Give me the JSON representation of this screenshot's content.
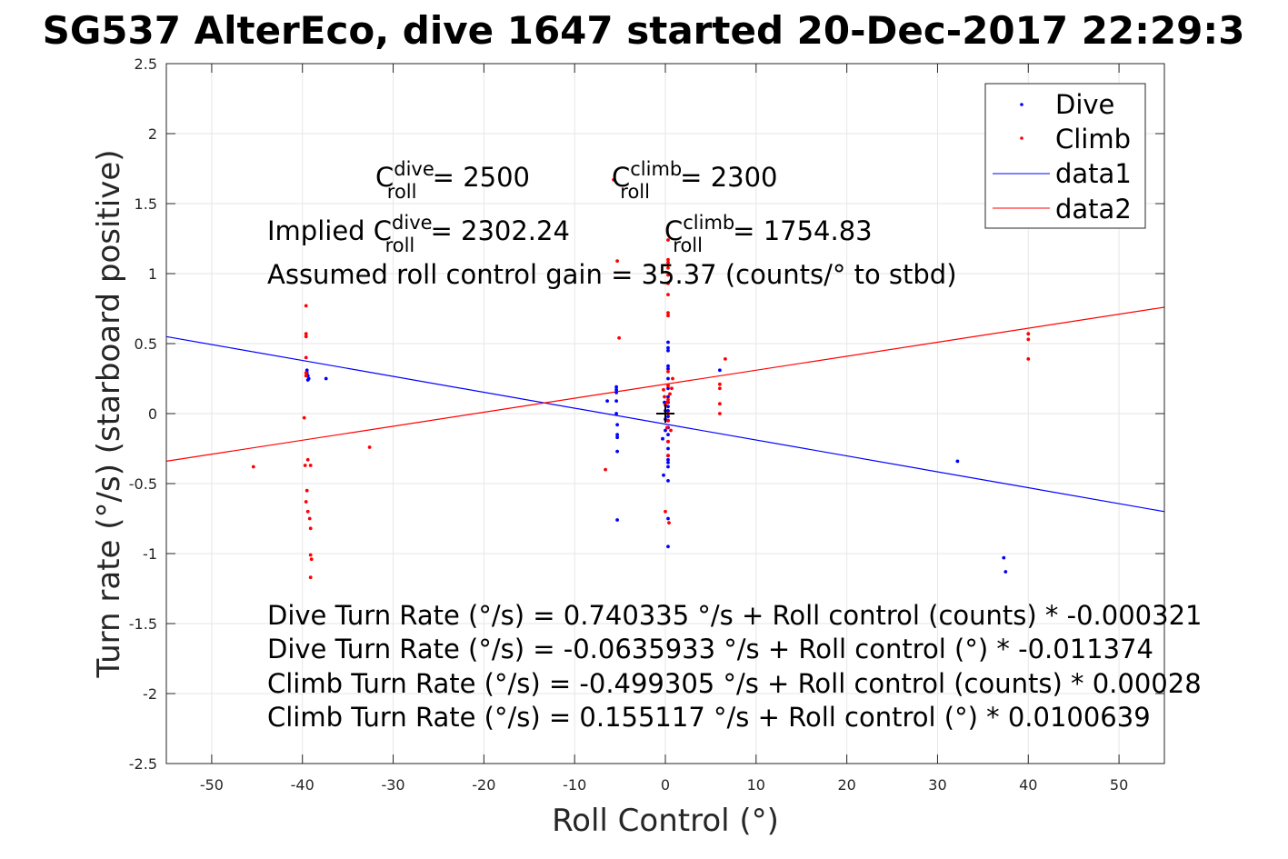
{
  "chart_data": {
    "type": "scatter",
    "title": "SG537 AlterEco, dive 1647 started 20-Dec-2017 22:29:3",
    "xlabel": "Roll Control (°)",
    "ylabel": "Turn rate (°/s) (starboard positive)",
    "xlim": [
      -55,
      55
    ],
    "ylim": [
      -2.5,
      2.5
    ],
    "x_ticks": [
      "-50",
      "-40",
      "-30",
      "-20",
      "-10",
      "0",
      "10",
      "20",
      "30",
      "40",
      "50"
    ],
    "y_ticks": [
      "-2.5",
      "-2",
      "-1.5",
      "-1",
      "-0.5",
      "0",
      "0.5",
      "1",
      "1.5",
      "2",
      "2.5"
    ],
    "grid": true,
    "legend_position": "top-right",
    "legend": [
      "Dive",
      "Climb",
      "data1",
      "data2"
    ],
    "colors": {
      "dive": "#0000ff",
      "climb": "#ff0000",
      "data1": "#0000ff",
      "data2": "#ff0000"
    },
    "series": [
      {
        "name": "Dive",
        "kind": "points",
        "color": "#0000ff",
        "points": [
          [
            -39.5,
            0.31
          ],
          [
            -39.5,
            0.29
          ],
          [
            -39.4,
            0.27
          ],
          [
            -39.4,
            0.24
          ],
          [
            -39.3,
            0.25
          ],
          [
            -37.4,
            0.25
          ],
          [
            -6.4,
            0.09
          ],
          [
            -5.4,
            0.19
          ],
          [
            -5.4,
            0.17
          ],
          [
            -5.4,
            0.15
          ],
          [
            -5.4,
            0.09
          ],
          [
            -5.4,
            0.0
          ],
          [
            -5.3,
            -0.08
          ],
          [
            -5.3,
            -0.15
          ],
          [
            -5.3,
            -0.17
          ],
          [
            -5.3,
            -0.27
          ],
          [
            -5.3,
            -0.76
          ],
          [
            0.3,
            0.51
          ],
          [
            0.3,
            0.47
          ],
          [
            0.3,
            0.45
          ],
          [
            0.3,
            0.34
          ],
          [
            0.3,
            0.32
          ],
          [
            0.3,
            0.25
          ],
          [
            0.3,
            0.18
          ],
          [
            0.3,
            0.12
          ],
          [
            0.3,
            0.08
          ],
          [
            0.3,
            0.05
          ],
          [
            0.3,
            0.02
          ],
          [
            0.3,
            -0.02
          ],
          [
            0.3,
            -0.05
          ],
          [
            0.3,
            -0.1
          ],
          [
            0.3,
            -0.15
          ],
          [
            0.3,
            -0.2
          ],
          [
            0.3,
            -0.25
          ],
          [
            0.3,
            -0.3
          ],
          [
            0.3,
            -0.33
          ],
          [
            0.3,
            -0.35
          ],
          [
            0.3,
            -0.38
          ],
          [
            0.3,
            -0.48
          ],
          [
            0.3,
            -0.75
          ],
          [
            0.3,
            -0.95
          ],
          [
            -0.3,
            -0.18
          ],
          [
            -0.2,
            -0.44
          ],
          [
            -0.1,
            0.08
          ],
          [
            0.0,
            0.02
          ],
          [
            0.0,
            -0.04
          ],
          [
            0.0,
            -0.12
          ],
          [
            6.0,
            0.31
          ],
          [
            32.2,
            -0.34
          ],
          [
            37.3,
            -1.03
          ],
          [
            37.5,
            -1.13
          ]
        ]
      },
      {
        "name": "Climb",
        "kind": "points",
        "color": "#ff0000",
        "points": [
          [
            -45.4,
            -0.38
          ],
          [
            -39.6,
            0.77
          ],
          [
            -39.6,
            0.57
          ],
          [
            -39.6,
            0.55
          ],
          [
            -39.6,
            0.4
          ],
          [
            -39.6,
            0.29
          ],
          [
            -39.6,
            0.27
          ],
          [
            -39.8,
            -0.03
          ],
          [
            -39.7,
            -0.37
          ],
          [
            -39.4,
            -0.33
          ],
          [
            -39.1,
            -0.37
          ],
          [
            -39.5,
            -0.55
          ],
          [
            -39.6,
            -0.63
          ],
          [
            -39.4,
            -0.7
          ],
          [
            -39.2,
            -0.75
          ],
          [
            -39.1,
            -0.82
          ],
          [
            -39.1,
            -1.01
          ],
          [
            -39.0,
            -1.04
          ],
          [
            -39.1,
            -1.17
          ],
          [
            -32.6,
            -0.24
          ],
          [
            -5.7,
            1.67
          ],
          [
            -5.3,
            1.09
          ],
          [
            -5.1,
            0.54
          ],
          [
            -6.6,
            -0.4
          ],
          [
            0.3,
            1.24
          ],
          [
            0.3,
            1.1
          ],
          [
            0.3,
            1.08
          ],
          [
            0.3,
            1.04
          ],
          [
            0.3,
            0.99
          ],
          [
            0.3,
            0.93
          ],
          [
            0.3,
            0.85
          ],
          [
            0.3,
            0.72
          ],
          [
            0.3,
            0.7
          ],
          [
            0.3,
            0.3
          ],
          [
            0.3,
            0.2
          ],
          [
            0.3,
            0.1
          ],
          [
            0.3,
            0.0
          ],
          [
            0.3,
            -0.05
          ],
          [
            0.3,
            -0.2
          ],
          [
            0.3,
            -0.3
          ],
          [
            0.0,
            -0.7
          ],
          [
            0.4,
            -0.78
          ],
          [
            -0.2,
            0.17
          ],
          [
            -0.1,
            0.12
          ],
          [
            0.0,
            0.06
          ],
          [
            0.2,
            0.08
          ],
          [
            0.5,
            0.14
          ],
          [
            0.7,
            0.18
          ],
          [
            0.8,
            0.25
          ],
          [
            0.2,
            -0.1
          ],
          [
            0.6,
            -0.12
          ],
          [
            6.0,
            0.21
          ],
          [
            6.0,
            0.18
          ],
          [
            6.0,
            0.07
          ],
          [
            6.0,
            0.0
          ],
          [
            6.6,
            0.39
          ],
          [
            40.0,
            0.57
          ],
          [
            40.0,
            0.53
          ],
          [
            40.0,
            0.39
          ]
        ]
      },
      {
        "name": "data1",
        "kind": "line",
        "color": "#0000ff",
        "x": [
          -55,
          55
        ],
        "y": [
          0.55,
          -0.7
        ]
      },
      {
        "name": "data2",
        "kind": "line",
        "color": "#ff0000",
        "x": [
          -55,
          55
        ],
        "y": [
          -0.34,
          0.76
        ]
      }
    ],
    "marker_cross": [
      0,
      0
    ],
    "annotations": {
      "c_dive": {
        "prefix": "C",
        "sup": "dive",
        "sub": "roll",
        "rest": " = 2500"
      },
      "c_climb": {
        "prefix": "C",
        "sup": "climb",
        "sub": "roll",
        "rest": " = 2300"
      },
      "implied_dive": {
        "prefix": "Implied C",
        "sup": "dive",
        "sub": "roll",
        "rest": " = 2302.24"
      },
      "implied_climb": {
        "prefix": "C",
        "sup": "climb",
        "sub": "roll",
        "rest": " = 1754.83"
      },
      "gain": "Assumed roll control gain = 35.37 (counts/° to stbd)",
      "eq1": "Dive Turn Rate (°/s) = 0.740335 °/s + Roll control (counts) * -0.000321",
      "eq2": "Dive Turn Rate (°/s) = -0.0635933 °/s + Roll control (°) * -0.011374",
      "eq3": "Climb Turn Rate (°/s) = -0.499305 °/s + Roll control (counts) * 0.00028",
      "eq4": "Climb Turn Rate (°/s) = 0.155117 °/s + Roll control (°) * 0.0100639"
    }
  }
}
